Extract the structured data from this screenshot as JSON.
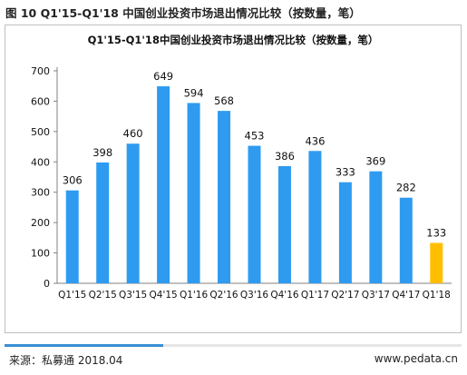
{
  "figure_caption": "图 10 Q1'15-Q1'18 中国创业投资市场退出情况比较（按数量，笔）",
  "footer": {
    "source": "来源：私募通 2018.04",
    "site": "www.pedata.cn"
  },
  "colors": {
    "bar": "#2e9bf0",
    "highlight_bar": "#ffbf00",
    "axis": "#808080",
    "footer_accent": "#3a8fd6"
  },
  "chart_data": {
    "type": "bar",
    "title": "Q1'15-Q1'18中国创业投资市场退出情况比较（按数量，笔）",
    "xlabel": "",
    "ylabel": "",
    "categories": [
      "Q1'15",
      "Q2'15",
      "Q3'15",
      "Q4'15",
      "Q1'16",
      "Q2'16",
      "Q3'16",
      "Q4'16",
      "Q1'17",
      "Q2'17",
      "Q3'17",
      "Q4'17",
      "Q1'18"
    ],
    "values": [
      306,
      398,
      460,
      649,
      594,
      568,
      453,
      386,
      436,
      333,
      369,
      282,
      133
    ],
    "highlight_index": 12,
    "ylim": [
      0,
      700
    ],
    "yticks": [
      0,
      100,
      200,
      300,
      400,
      500,
      600,
      700
    ],
    "grid": false,
    "legend": "none",
    "data_labels": true
  }
}
